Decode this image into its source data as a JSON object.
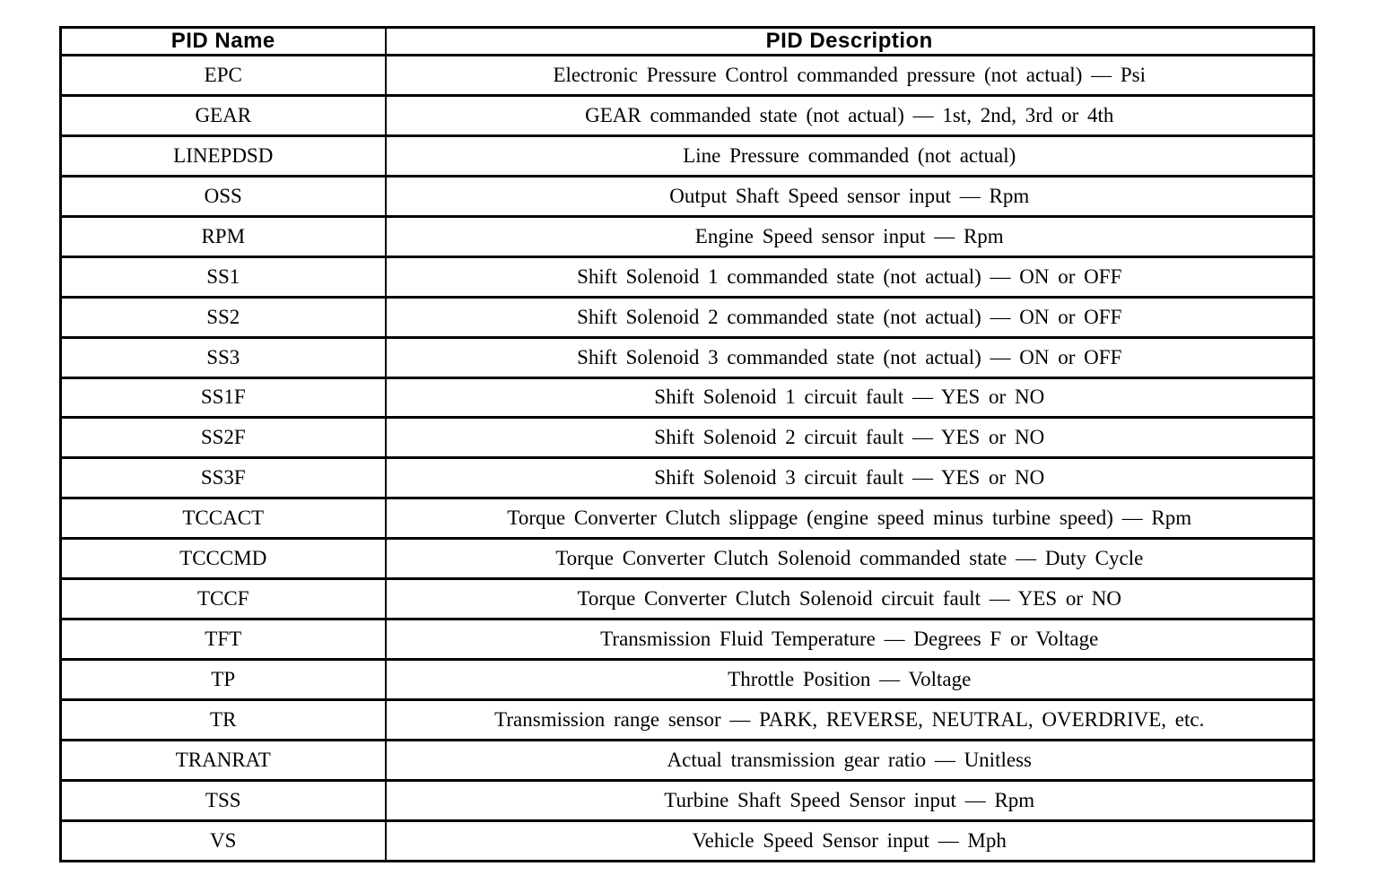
{
  "pid_table": {
    "columns": [
      {
        "label": "PID Name"
      },
      {
        "label": "PID Description"
      }
    ],
    "rows": [
      {
        "name": "EPC",
        "description": "Electronic Pressure Control commanded pressure (not actual) — Psi"
      },
      {
        "name": "GEAR",
        "description": "GEAR commanded state (not actual) — 1st, 2nd, 3rd or 4th"
      },
      {
        "name": "LINEPDSD",
        "description": "Line Pressure commanded (not actual)"
      },
      {
        "name": "OSS",
        "description": "Output Shaft Speed sensor input — Rpm"
      },
      {
        "name": "RPM",
        "description": "Engine Speed sensor input — Rpm"
      },
      {
        "name": "SS1",
        "description": "Shift Solenoid 1 commanded state (not actual) — ON or OFF"
      },
      {
        "name": "SS2",
        "description": "Shift Solenoid 2 commanded state (not actual) — ON or OFF"
      },
      {
        "name": "SS3",
        "description": "Shift Solenoid 3 commanded state (not actual) — ON or OFF"
      },
      {
        "name": "SS1F",
        "description": "Shift Solenoid 1 circuit fault — YES or NO"
      },
      {
        "name": "SS2F",
        "description": "Shift Solenoid 2 circuit fault — YES or NO"
      },
      {
        "name": "SS3F",
        "description": "Shift Solenoid 3 circuit fault — YES or NO"
      },
      {
        "name": "TCCACT",
        "description": "Torque Converter Clutch slippage (engine speed minus turbine speed) — Rpm"
      },
      {
        "name": "TCCCMD",
        "description": "Torque Converter Clutch Solenoid commanded state — Duty Cycle"
      },
      {
        "name": "TCCF",
        "description": "Torque Converter Clutch Solenoid circuit fault — YES or NO"
      },
      {
        "name": "TFT",
        "description": "Transmission Fluid Temperature — Degrees F or Voltage"
      },
      {
        "name": "TP",
        "description": "Throttle Position — Voltage"
      },
      {
        "name": "TR",
        "description": "Transmission range sensor — PARK, REVERSE, NEUTRAL, OVERDRIVE, etc."
      },
      {
        "name": "TRANRAT",
        "description": "Actual transmission gear ratio — Unitless"
      },
      {
        "name": "TSS",
        "description": "Turbine Shaft Speed Sensor input — Rpm"
      },
      {
        "name": "VS",
        "description": "Vehicle Speed Sensor input — Mph"
      }
    ],
    "colors": {
      "border": "#000000",
      "text": "#000000",
      "background": "#ffffff"
    }
  }
}
